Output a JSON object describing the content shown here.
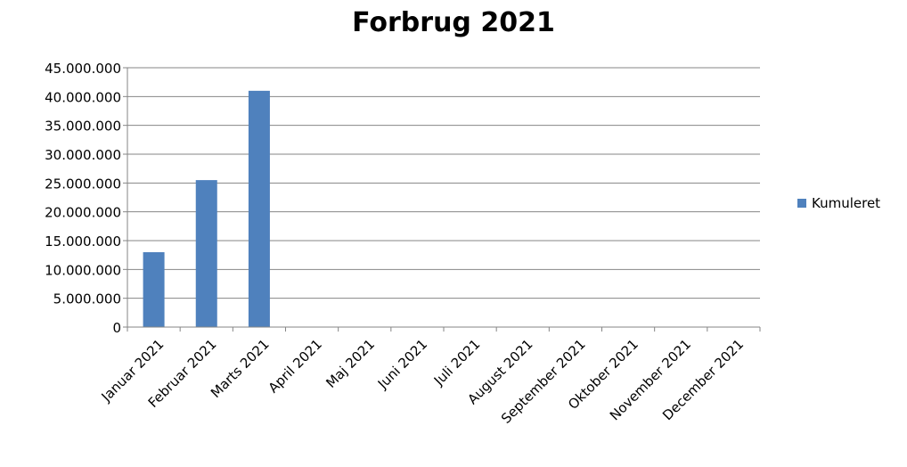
{
  "chart_data": {
    "type": "bar",
    "title": "Forbrug 2021",
    "xlabel": "",
    "ylabel": "",
    "categories": [
      "Januar 2021",
      "Februar 2021",
      "Marts 2021",
      "April 2021",
      "Maj 2021",
      "Juni 2021",
      "Juli 2021",
      "August 2021",
      "September 2021",
      "Oktober 2021",
      "November 2021",
      "December 2021"
    ],
    "series": [
      {
        "name": "Kumuleret",
        "values": [
          13000000,
          25500000,
          41000000,
          null,
          null,
          null,
          null,
          null,
          null,
          null,
          null,
          null
        ],
        "color": "#4f81bd"
      }
    ],
    "ylim": [
      0,
      45000000
    ],
    "y_ticks": [
      "0",
      "5.000.000",
      "10.000.000",
      "15.000.000",
      "20.000.000",
      "25.000.000",
      "30.000.000",
      "35.000.000",
      "40.000.000",
      "45.000.000"
    ],
    "grid": true,
    "legend_position": "right"
  }
}
